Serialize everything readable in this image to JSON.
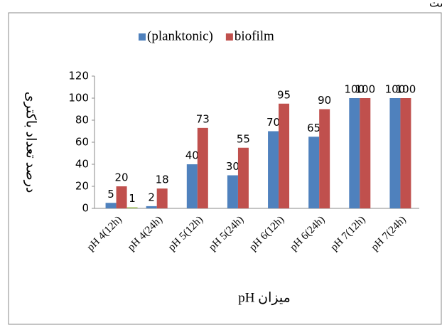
{
  "fragment": "ست.",
  "chart_data": {
    "type": "bar",
    "xlabel": "میزان pH",
    "ylabel": "درصد تعداد باکتری",
    "categories": [
      "pH 4(12h)",
      "pH 4(24h)",
      "pH 5(12h)",
      "pH 5(24h)",
      "pH 6(12h)",
      "pH 6(24h)",
      "pH 7(12h)",
      "pH 7(24h)"
    ],
    "series": [
      {
        "name": "(planktonic)",
        "color": "#4f81bd",
        "values": [
          5,
          2,
          40,
          30,
          70,
          65,
          100,
          100
        ]
      },
      {
        "name": "biofilm",
        "color": "#c0504d",
        "values": [
          20,
          18,
          73,
          55,
          95,
          90,
          100,
          100
        ]
      },
      {
        "color": "#9bbb59",
        "values": [
          1,
          null,
          null,
          null,
          null,
          null,
          null,
          null
        ]
      }
    ],
    "ylim": [
      0,
      120
    ],
    "yticks": [
      0,
      20,
      40,
      60,
      80,
      100,
      120
    ],
    "grid": false,
    "legend": "top"
  }
}
